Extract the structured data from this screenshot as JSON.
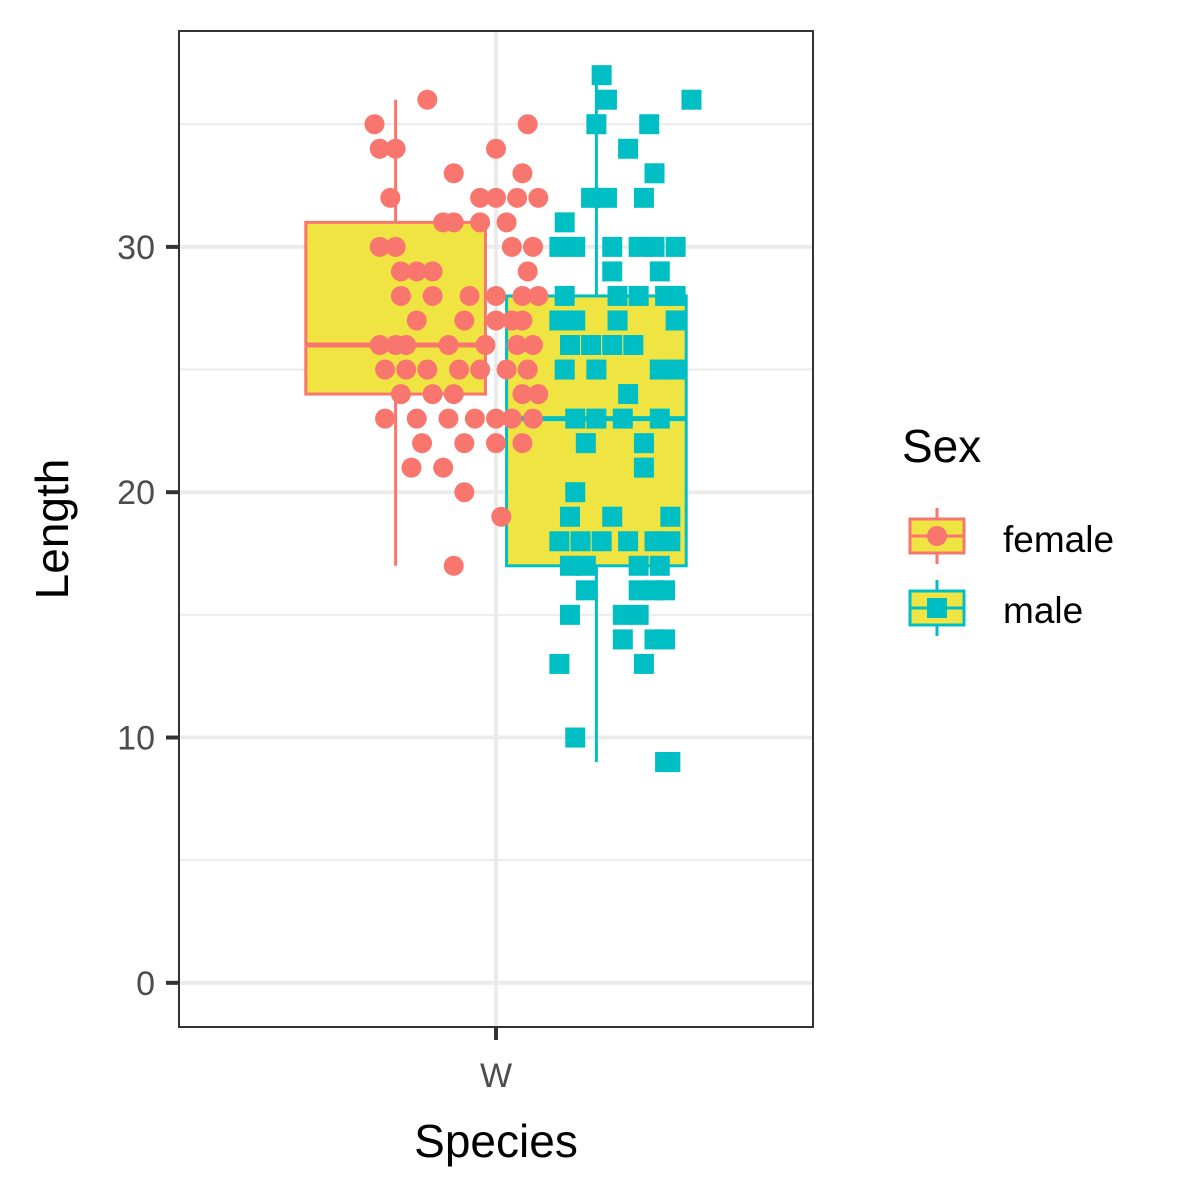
{
  "chart_data": {
    "type": "boxplot",
    "xlabel": "Species",
    "ylabel": "Length",
    "categories": [
      "W"
    ],
    "ylim": [
      -1.8,
      38.8
    ],
    "yticks": [
      0,
      10,
      20,
      30
    ],
    "grid": true,
    "legend": {
      "title": "Sex",
      "position": "right"
    },
    "box_fill": "#F0E442",
    "series": [
      {
        "name": "female",
        "color": "#F8766D",
        "marker": "circle",
        "box": {
          "whisker_low": 17,
          "q1": 24,
          "median": 26,
          "q3": 31,
          "whisker_high": 36
        },
        "points": [
          {
            "x": -0.23,
            "y": 35
          },
          {
            "x": -0.22,
            "y": 34
          },
          {
            "x": -0.19,
            "y": 34
          },
          {
            "x": -0.13,
            "y": 36
          },
          {
            "x": 0.0,
            "y": 34
          },
          {
            "x": 0.06,
            "y": 35
          },
          {
            "x": -0.2,
            "y": 32
          },
          {
            "x": -0.03,
            "y": 32
          },
          {
            "x": 0.0,
            "y": 32
          },
          {
            "x": 0.04,
            "y": 32
          },
          {
            "x": 0.08,
            "y": 32
          },
          {
            "x": -0.08,
            "y": 33
          },
          {
            "x": 0.05,
            "y": 33
          },
          {
            "x": -0.08,
            "y": 31
          },
          {
            "x": -0.1,
            "y": 31
          },
          {
            "x": -0.03,
            "y": 31
          },
          {
            "x": 0.02,
            "y": 31
          },
          {
            "x": -0.22,
            "y": 30
          },
          {
            "x": -0.19,
            "y": 30
          },
          {
            "x": 0.03,
            "y": 30
          },
          {
            "x": 0.07,
            "y": 30
          },
          {
            "x": -0.18,
            "y": 29
          },
          {
            "x": -0.15,
            "y": 29
          },
          {
            "x": -0.12,
            "y": 29
          },
          {
            "x": 0.06,
            "y": 29
          },
          {
            "x": -0.18,
            "y": 28
          },
          {
            "x": -0.12,
            "y": 28
          },
          {
            "x": -0.05,
            "y": 28
          },
          {
            "x": 0.0,
            "y": 28
          },
          {
            "x": 0.05,
            "y": 28
          },
          {
            "x": 0.08,
            "y": 28
          },
          {
            "x": -0.15,
            "y": 27
          },
          {
            "x": -0.06,
            "y": 27
          },
          {
            "x": 0.0,
            "y": 27
          },
          {
            "x": 0.03,
            "y": 27
          },
          {
            "x": 0.05,
            "y": 27
          },
          {
            "x": -0.22,
            "y": 26
          },
          {
            "x": -0.19,
            "y": 26
          },
          {
            "x": -0.17,
            "y": 26
          },
          {
            "x": -0.09,
            "y": 26
          },
          {
            "x": -0.02,
            "y": 26
          },
          {
            "x": 0.04,
            "y": 26
          },
          {
            "x": 0.07,
            "y": 26
          },
          {
            "x": -0.21,
            "y": 25
          },
          {
            "x": -0.17,
            "y": 25
          },
          {
            "x": -0.13,
            "y": 25
          },
          {
            "x": -0.07,
            "y": 25
          },
          {
            "x": -0.03,
            "y": 25
          },
          {
            "x": 0.02,
            "y": 25
          },
          {
            "x": 0.06,
            "y": 25
          },
          {
            "x": -0.18,
            "y": 24
          },
          {
            "x": -0.12,
            "y": 24
          },
          {
            "x": -0.08,
            "y": 24
          },
          {
            "x": 0.05,
            "y": 24
          },
          {
            "x": 0.08,
            "y": 24
          },
          {
            "x": -0.21,
            "y": 23
          },
          {
            "x": -0.15,
            "y": 23
          },
          {
            "x": -0.09,
            "y": 23
          },
          {
            "x": -0.04,
            "y": 23
          },
          {
            "x": 0.0,
            "y": 23
          },
          {
            "x": 0.03,
            "y": 23
          },
          {
            "x": 0.07,
            "y": 23
          },
          {
            "x": -0.14,
            "y": 22
          },
          {
            "x": -0.06,
            "y": 22
          },
          {
            "x": 0.0,
            "y": 22
          },
          {
            "x": 0.05,
            "y": 22
          },
          {
            "x": -0.16,
            "y": 21
          },
          {
            "x": -0.1,
            "y": 21
          },
          {
            "x": -0.06,
            "y": 20
          },
          {
            "x": 0.01,
            "y": 19
          },
          {
            "x": -0.08,
            "y": 17
          }
        ]
      },
      {
        "name": "male",
        "color": "#00BFC4",
        "marker": "square",
        "box": {
          "whisker_low": 9,
          "q1": 17,
          "median": 23,
          "q3": 28,
          "whisker_high": 37
        },
        "points": [
          {
            "x": 0.2,
            "y": 37
          },
          {
            "x": 0.21,
            "y": 36
          },
          {
            "x": 0.37,
            "y": 36
          },
          {
            "x": 0.19,
            "y": 35
          },
          {
            "x": 0.29,
            "y": 35
          },
          {
            "x": 0.25,
            "y": 34
          },
          {
            "x": 0.3,
            "y": 33
          },
          {
            "x": 0.18,
            "y": 32
          },
          {
            "x": 0.21,
            "y": 32
          },
          {
            "x": 0.28,
            "y": 32
          },
          {
            "x": 0.13,
            "y": 31
          },
          {
            "x": 0.12,
            "y": 30
          },
          {
            "x": 0.15,
            "y": 30
          },
          {
            "x": 0.22,
            "y": 30
          },
          {
            "x": 0.27,
            "y": 30
          },
          {
            "x": 0.3,
            "y": 30
          },
          {
            "x": 0.34,
            "y": 30
          },
          {
            "x": 0.22,
            "y": 29
          },
          {
            "x": 0.31,
            "y": 29
          },
          {
            "x": 0.13,
            "y": 28
          },
          {
            "x": 0.23,
            "y": 28
          },
          {
            "x": 0.27,
            "y": 28
          },
          {
            "x": 0.32,
            "y": 28
          },
          {
            "x": 0.34,
            "y": 28
          },
          {
            "x": 0.12,
            "y": 27
          },
          {
            "x": 0.15,
            "y": 27
          },
          {
            "x": 0.23,
            "y": 27
          },
          {
            "x": 0.34,
            "y": 27
          },
          {
            "x": 0.14,
            "y": 26
          },
          {
            "x": 0.18,
            "y": 26
          },
          {
            "x": 0.22,
            "y": 26
          },
          {
            "x": 0.26,
            "y": 26
          },
          {
            "x": 0.13,
            "y": 25
          },
          {
            "x": 0.19,
            "y": 25
          },
          {
            "x": 0.31,
            "y": 25
          },
          {
            "x": 0.34,
            "y": 25
          },
          {
            "x": 0.25,
            "y": 24
          },
          {
            "x": 0.15,
            "y": 23
          },
          {
            "x": 0.19,
            "y": 23
          },
          {
            "x": 0.24,
            "y": 23
          },
          {
            "x": 0.31,
            "y": 23
          },
          {
            "x": 0.17,
            "y": 22
          },
          {
            "x": 0.28,
            "y": 22
          },
          {
            "x": 0.28,
            "y": 21
          },
          {
            "x": 0.15,
            "y": 20
          },
          {
            "x": 0.14,
            "y": 19
          },
          {
            "x": 0.22,
            "y": 19
          },
          {
            "x": 0.33,
            "y": 19
          },
          {
            "x": 0.12,
            "y": 18
          },
          {
            "x": 0.16,
            "y": 18
          },
          {
            "x": 0.2,
            "y": 18
          },
          {
            "x": 0.25,
            "y": 18
          },
          {
            "x": 0.3,
            "y": 18
          },
          {
            "x": 0.33,
            "y": 18
          },
          {
            "x": 0.14,
            "y": 17
          },
          {
            "x": 0.17,
            "y": 17
          },
          {
            "x": 0.27,
            "y": 17
          },
          {
            "x": 0.31,
            "y": 17
          },
          {
            "x": 0.17,
            "y": 16
          },
          {
            "x": 0.27,
            "y": 16
          },
          {
            "x": 0.3,
            "y": 16
          },
          {
            "x": 0.32,
            "y": 16
          },
          {
            "x": 0.14,
            "y": 15
          },
          {
            "x": 0.24,
            "y": 15
          },
          {
            "x": 0.27,
            "y": 15
          },
          {
            "x": 0.24,
            "y": 14
          },
          {
            "x": 0.3,
            "y": 14
          },
          {
            "x": 0.32,
            "y": 14
          },
          {
            "x": 0.12,
            "y": 13
          },
          {
            "x": 0.28,
            "y": 13
          },
          {
            "x": 0.15,
            "y": 10
          },
          {
            "x": 0.32,
            "y": 9
          },
          {
            "x": 0.33,
            "y": 9
          }
        ]
      }
    ]
  }
}
